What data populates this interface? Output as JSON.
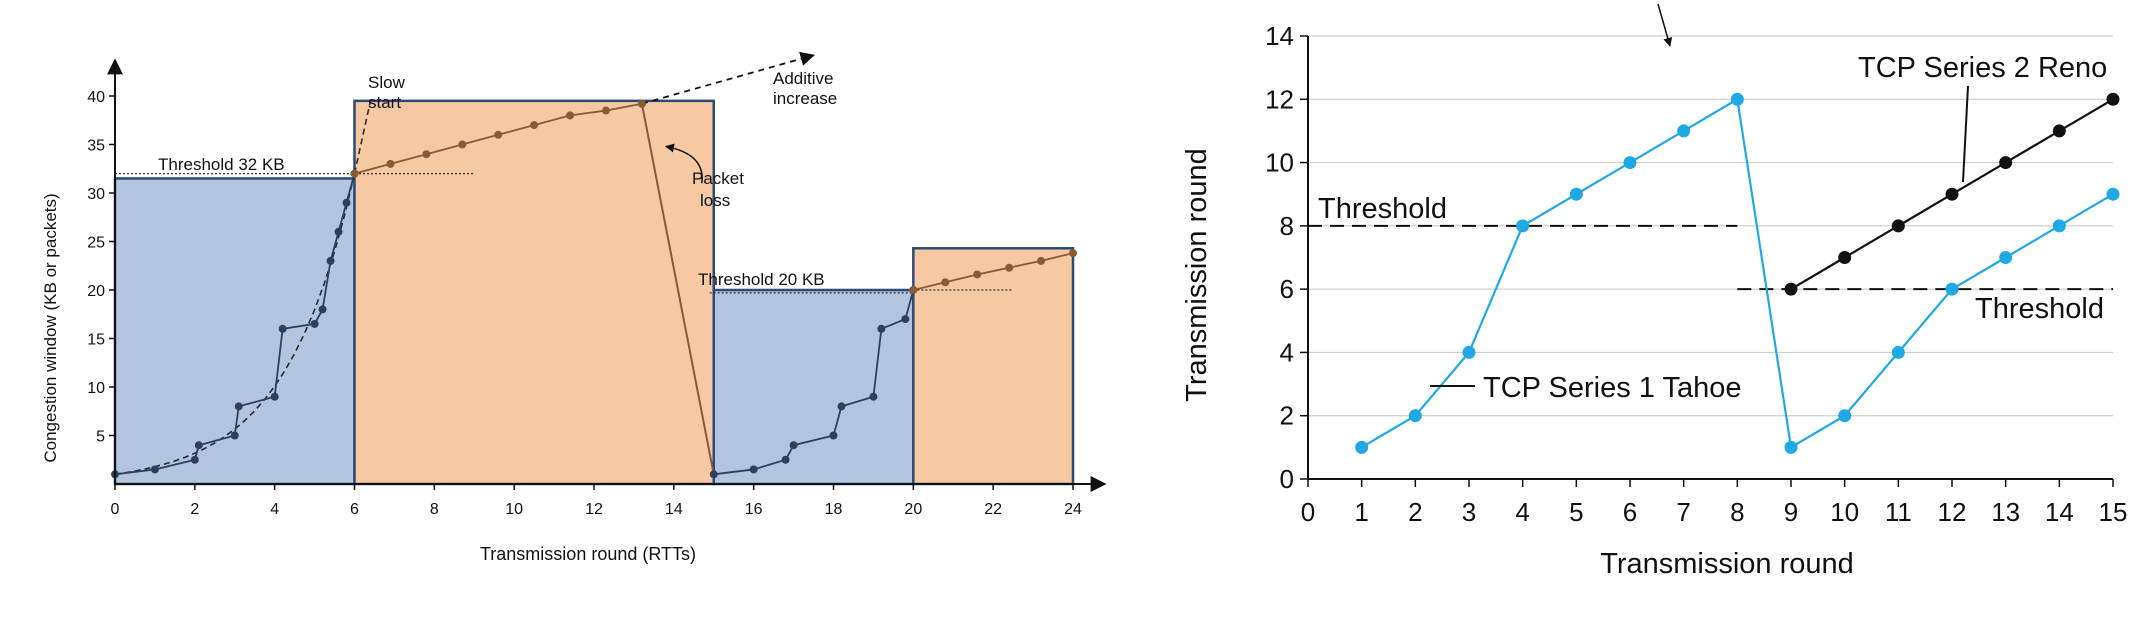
{
  "chart_data": [
    {
      "type": "line",
      "xlabel": "Transmission round (RTTs)",
      "ylabel": "Congestion window  (KB or packets)",
      "xlim": [
        0,
        24
      ],
      "ylim": [
        0,
        40
      ],
      "xticks": [
        0,
        2,
        4,
        6,
        8,
        10,
        12,
        14,
        16,
        18,
        20,
        22,
        24
      ],
      "yticks": [
        5,
        10,
        15,
        20,
        25,
        30,
        35,
        40
      ],
      "colors": {
        "slow_start_fill": "#b2c4e0",
        "additive_fill": "#f7c9a2",
        "slow_start_curve": "#2f3f5c",
        "additive_line": "#8a5a33",
        "box_stroke": "#2b4a7a"
      },
      "regions": [
        {
          "phase": "slow start",
          "x": [
            0,
            6
          ],
          "top": 31.5
        },
        {
          "phase": "additive increase",
          "x": [
            6,
            15
          ],
          "top": 39.5
        },
        {
          "phase": "slow start",
          "x": [
            15,
            20
          ],
          "top": 20
        },
        {
          "phase": "additive increase",
          "x": [
            20,
            24
          ],
          "top": 24.3
        }
      ],
      "series": [
        {
          "name": "",
          "points": [
            [
              0,
              1
            ],
            [
              1,
              1.5
            ],
            [
              2,
              2.5
            ],
            [
              2.1,
              4
            ],
            [
              3,
              5
            ],
            [
              3.1,
              8
            ],
            [
              4,
              9
            ],
            [
              4.2,
              16
            ],
            [
              5,
              16.5
            ],
            [
              5.2,
              18
            ],
            [
              5.4,
              23
            ],
            [
              5.6,
              26
            ],
            [
              5.8,
              29
            ],
            [
              6,
              32
            ]
          ]
        },
        {
          "name": "",
          "points": [
            [
              6,
              32
            ],
            [
              6.9,
              33
            ],
            [
              7.8,
              34
            ],
            [
              8.7,
              35
            ],
            [
              9.6,
              36
            ],
            [
              10.5,
              37
            ],
            [
              11.4,
              38
            ],
            [
              12.3,
              38.5
            ],
            [
              13.2,
              39.2
            ]
          ]
        },
        {
          "name": "",
          "points": [
            [
              15,
              1
            ],
            [
              16,
              1.5
            ],
            [
              16.8,
              2.5
            ],
            [
              17,
              4
            ],
            [
              18,
              5
            ],
            [
              18.2,
              8
            ],
            [
              19,
              9
            ],
            [
              19.2,
              16
            ],
            [
              19.8,
              17
            ],
            [
              20,
              20
            ]
          ]
        },
        {
          "name": "",
          "points": [
            [
              20,
              20
            ],
            [
              20.8,
              20.8
            ],
            [
              21.6,
              21.6
            ],
            [
              22.4,
              22.3
            ],
            [
              23.2,
              23
            ],
            [
              24,
              23.8
            ]
          ]
        }
      ],
      "annotations": {
        "threshold1": "Threshold 32 KB",
        "threshold2": "Threshold 20 KB",
        "slow_start": "Slow\nstart",
        "additive_increase": "Additive\nincrease",
        "packet_loss": "Packet\nloss"
      }
    },
    {
      "type": "line",
      "xlabel": "Transmission round",
      "ylabel": "Transmission round",
      "xlim": [
        0,
        15
      ],
      "ylim": [
        0,
        14
      ],
      "xticks": [
        0,
        1,
        2,
        3,
        4,
        5,
        6,
        7,
        8,
        9,
        10,
        11,
        12,
        13,
        14,
        15
      ],
      "yticks": [
        0,
        2,
        4,
        6,
        8,
        10,
        12,
        14
      ],
      "grid": true,
      "series": [
        {
          "name": "TCP Series 1 Tahoe",
          "color": "#1fa8e6",
          "x": [
            1,
            2,
            3,
            4,
            5,
            6,
            7,
            8,
            9,
            10,
            11,
            12,
            13,
            14,
            15
          ],
          "y": [
            1,
            2,
            4,
            8,
            9,
            10,
            11,
            12,
            1,
            2,
            4,
            6,
            7,
            8,
            9
          ]
        },
        {
          "name": "TCP Series 2 Reno",
          "color": "#111111",
          "x": [
            9,
            10,
            11,
            12,
            13,
            14,
            15
          ],
          "y": [
            6,
            7,
            8,
            9,
            10,
            11,
            12
          ]
        }
      ],
      "thresholds": [
        {
          "label": "Threshold",
          "y": 8,
          "x_from": 0,
          "x_to": 8
        },
        {
          "label": "Threshold",
          "y": 6,
          "x_from": 8,
          "x_to": 15
        }
      ]
    }
  ]
}
